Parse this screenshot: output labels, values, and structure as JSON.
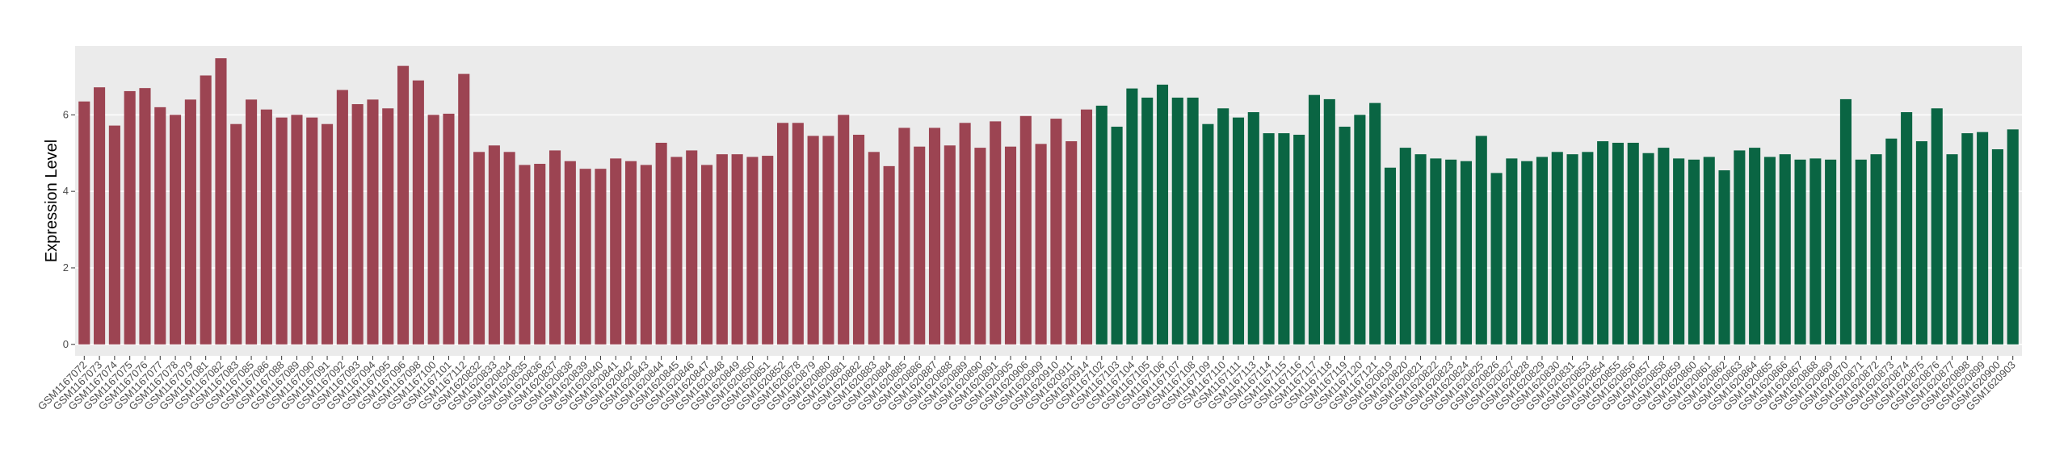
{
  "chart_data": {
    "type": "bar",
    "y_label": "Expression Level",
    "categories": [
      "GSM1167072",
      "GSM1167073",
      "GSM1167074",
      "GSM1167075",
      "GSM1167076",
      "GSM1167077",
      "GSM1167078",
      "GSM1167079",
      "GSM1167081",
      "GSM1167082",
      "GSM1167083",
      "GSM1167085",
      "GSM1167086",
      "GSM1167088",
      "GSM1167089",
      "GSM1167090",
      "GSM1167091",
      "GSM1167092",
      "GSM1167093",
      "GSM1167094",
      "GSM1167095",
      "GSM1167096",
      "GSM1167098",
      "GSM1167100",
      "GSM1167101",
      "GSM1167112",
      "GSM1620832",
      "GSM1620833",
      "GSM1620834",
      "GSM1620835",
      "GSM1620836",
      "GSM1620837",
      "GSM1620838",
      "GSM1620839",
      "GSM1620840",
      "GSM1620841",
      "GSM1620842",
      "GSM1620843",
      "GSM1620844",
      "GSM1620845",
      "GSM1620846",
      "GSM1620847",
      "GSM1620848",
      "GSM1620849",
      "GSM1620850",
      "GSM1620851",
      "GSM1620852",
      "GSM1620878",
      "GSM1620879",
      "GSM1620880",
      "GSM1620881",
      "GSM1620882",
      "GSM1620883",
      "GSM1620884",
      "GSM1620885",
      "GSM1620886",
      "GSM1620887",
      "GSM1620888",
      "GSM1620889",
      "GSM1620890",
      "GSM1620891",
      "GSM1620905",
      "GSM1620906",
      "GSM1620909",
      "GSM1620910",
      "GSM1620911",
      "GSM1620914",
      "GSM1167102",
      "GSM1167103",
      "GSM1167104",
      "GSM1167105",
      "GSM1167106",
      "GSM1167107",
      "GSM1167108",
      "GSM1167109",
      "GSM1167110",
      "GSM1167111",
      "GSM1167113",
      "GSM1167114",
      "GSM1167115",
      "GSM1167116",
      "GSM1167117",
      "GSM1167118",
      "GSM1167119",
      "GSM1167120",
      "GSM1167121",
      "GSM1620819",
      "GSM1620820",
      "GSM1620821",
      "GSM1620822",
      "GSM1620823",
      "GSM1620824",
      "GSM1620825",
      "GSM1620826",
      "GSM1620827",
      "GSM1620828",
      "GSM1620829",
      "GSM1620830",
      "GSM1620831",
      "GSM1620853",
      "GSM1620854",
      "GSM1620855",
      "GSM1620856",
      "GSM1620857",
      "GSM1620858",
      "GSM1620859",
      "GSM1620860",
      "GSM1620861",
      "GSM1620862",
      "GSM1620863",
      "GSM1620864",
      "GSM1620865",
      "GSM1620866",
      "GSM1620867",
      "GSM1620868",
      "GSM1620869",
      "GSM1620870",
      "GSM1620871",
      "GSM1620872",
      "GSM1620873",
      "GSM1620874",
      "GSM1620875",
      "GSM1620876",
      "GSM1620877",
      "GSM1620898",
      "GSM1620899",
      "GSM1620900",
      "GSM1620903"
    ],
    "values": [
      6.35,
      6.72,
      5.72,
      6.62,
      6.7,
      6.2,
      6.0,
      6.4,
      7.03,
      7.48,
      5.76,
      6.4,
      6.14,
      5.93,
      6.0,
      5.93,
      5.76,
      6.65,
      6.28,
      6.4,
      6.17,
      7.28,
      6.9,
      6.0,
      6.03,
      7.07,
      5.03,
      5.2,
      5.03,
      4.69,
      4.72,
      5.07,
      4.79,
      4.59,
      4.59,
      4.86,
      4.79,
      4.69,
      5.27,
      4.9,
      5.07,
      4.69,
      4.97,
      4.97,
      4.9,
      4.93,
      5.79,
      5.79,
      5.45,
      5.45,
      6.0,
      5.48,
      5.03,
      4.66,
      5.66,
      5.17,
      5.66,
      5.2,
      5.79,
      5.14,
      5.83,
      5.17,
      5.97,
      5.24,
      5.9,
      5.31,
      6.14,
      6.24,
      5.69,
      6.69,
      6.45,
      6.79,
      6.45,
      6.45,
      5.76,
      6.17,
      5.93,
      6.07,
      5.52,
      5.52,
      5.48,
      6.52,
      6.41,
      5.69,
      6.0,
      6.31,
      4.62,
      5.14,
      4.97,
      4.86,
      4.83,
      4.79,
      5.45,
      4.48,
      4.86,
      4.79,
      4.9,
      5.03,
      4.97,
      5.03,
      5.31,
      5.27,
      5.27,
      5.0,
      5.14,
      4.86,
      4.83,
      4.9,
      4.55,
      5.07,
      5.14,
      4.9,
      4.97,
      4.83,
      4.86,
      4.83,
      6.41,
      4.83,
      4.97,
      5.38,
      6.07,
      5.31,
      6.17,
      4.97,
      5.52,
      5.55,
      5.1,
      5.62
    ],
    "colors": [
      "#9c4452",
      "#9c4452",
      "#9c4452",
      "#9c4452",
      "#9c4452",
      "#9c4452",
      "#9c4452",
      "#9c4452",
      "#9c4452",
      "#9c4452",
      "#9c4452",
      "#9c4452",
      "#9c4452",
      "#9c4452",
      "#9c4452",
      "#9c4452",
      "#9c4452",
      "#9c4452",
      "#9c4452",
      "#9c4452",
      "#9c4452",
      "#9c4452",
      "#9c4452",
      "#9c4452",
      "#9c4452",
      "#9c4452",
      "#9c4452",
      "#9c4452",
      "#9c4452",
      "#9c4452",
      "#9c4452",
      "#9c4452",
      "#9c4452",
      "#9c4452",
      "#9c4452",
      "#9c4452",
      "#9c4452",
      "#9c4452",
      "#9c4452",
      "#9c4452",
      "#9c4452",
      "#9c4452",
      "#9c4452",
      "#9c4452",
      "#9c4452",
      "#9c4452",
      "#9c4452",
      "#9c4452",
      "#9c4452",
      "#9c4452",
      "#9c4452",
      "#9c4452",
      "#9c4452",
      "#9c4452",
      "#9c4452",
      "#9c4452",
      "#9c4452",
      "#9c4452",
      "#9c4452",
      "#9c4452",
      "#9c4452",
      "#9c4452",
      "#9c4452",
      "#9c4452",
      "#9c4452",
      "#9c4452",
      "#9c4452",
      "#0a6543",
      "#0a6543",
      "#0a6543",
      "#0a6543",
      "#0a6543",
      "#0a6543",
      "#0a6543",
      "#0a6543",
      "#0a6543",
      "#0a6543",
      "#0a6543",
      "#0a6543",
      "#0a6543",
      "#0a6543",
      "#0a6543",
      "#0a6543",
      "#0a6543",
      "#0a6543",
      "#0a6543",
      "#0a6543",
      "#0a6543",
      "#0a6543",
      "#0a6543",
      "#0a6543",
      "#0a6543",
      "#0a6543",
      "#0a6543",
      "#0a6543",
      "#0a6543",
      "#0a6543",
      "#0a6543",
      "#0a6543",
      "#0a6543",
      "#0a6543",
      "#0a6543",
      "#0a6543",
      "#0a6543",
      "#0a6543",
      "#0a6543",
      "#0a6543",
      "#0a6543",
      "#0a6543",
      "#0a6543",
      "#0a6543",
      "#0a6543",
      "#0a6543",
      "#0a6543",
      "#0a6543",
      "#0a6543",
      "#0a6543",
      "#0a6543",
      "#0a6543",
      "#0a6543",
      "#0a6543",
      "#0a6543",
      "#0a6543",
      "#0a6543",
      "#0a6543",
      "#0a6543",
      "#0a6543",
      "#0a6543"
    ],
    "ylim": [
      -0.3,
      7.8
    ],
    "yticks": [
      0,
      2,
      4,
      6
    ],
    "grid": true
  }
}
